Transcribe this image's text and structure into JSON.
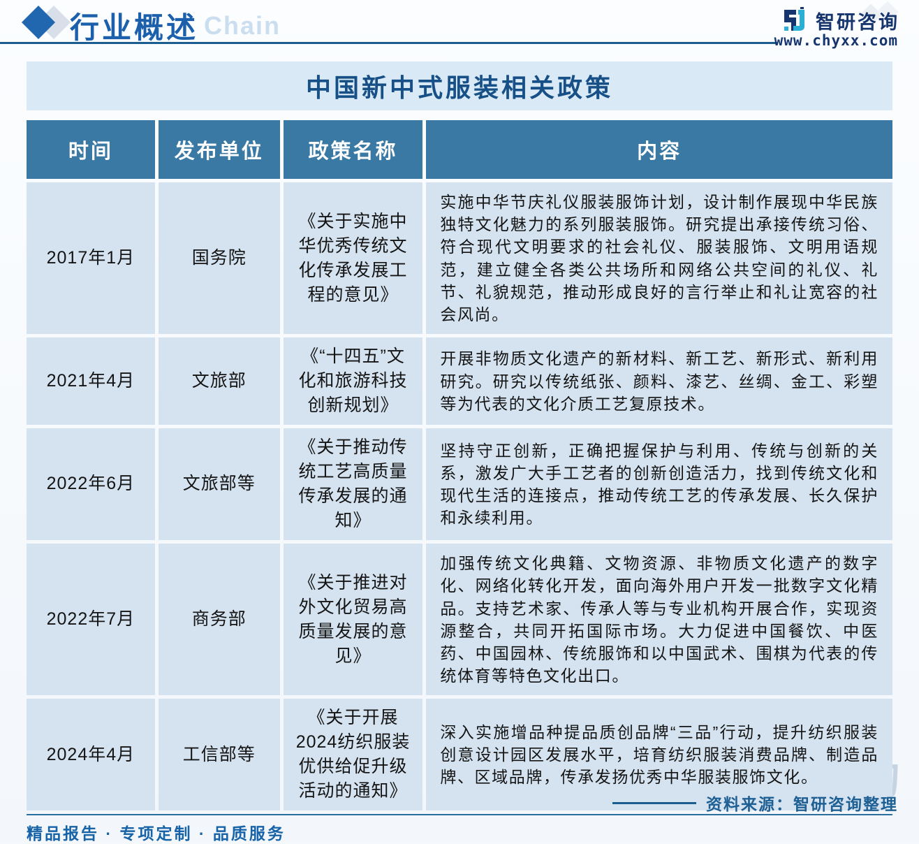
{
  "header": {
    "title": "行业概述",
    "watermark_text": "Chain",
    "brand": {
      "name": "智研咨询",
      "url": "www.chyxx.com"
    }
  },
  "table": {
    "title": "中国新中式服装相关政策",
    "columns": [
      "时间",
      "发布单位",
      "政策名称",
      "内容"
    ],
    "rows": [
      {
        "time": "2017年1月",
        "agency": "国务院",
        "policy": "《关于实施中华优秀传统文化传承发展工程的意见》",
        "content": "实施中华节庆礼仪服装服饰计划，设计制作展现中华民族独特文化魅力的系列服装服饰。研究提出承接传统习俗、符合现代文明要求的社会礼仪、服装服饰、文明用语规范，建立健全各类公共场所和网络公共空间的礼仪、礼节、礼貌规范，推动形成良好的言行举止和礼让宽容的社会风尚。"
      },
      {
        "time": "2021年4月",
        "agency": "文旅部",
        "policy": "《“十四五”文化和旅游科技创新规划》",
        "content": "开展非物质文化遗产的新材料、新工艺、新形式、新利用研究。研究以传统纸张、颜料、漆艺、丝绸、金工、彩塑等为代表的文化介质工艺复原技术。"
      },
      {
        "time": "2022年6月",
        "agency": "文旅部等",
        "policy": "《关于推动传统工艺高质量传承发展的通知》",
        "content": "坚持守正创新，正确把握保护与利用、传统与创新的关系，激发广大手工艺者的创新创造活力，找到传统文化和现代生活的连接点，推动传统工艺的传承发展、长久保护和永续利用。"
      },
      {
        "time": "2022年7月",
        "agency": "商务部",
        "policy": "《关于推进对外文化贸易高质量发展的意见》",
        "content": "加强传统文化典籍、文物资源、非物质文化遗产的数字化、网络化转化开发，面向海外用户开发一批数字文化精品。支持艺术家、传承人等与专业机构开展合作，实现资源整合，共同开拓国际市场。大力促进中国餐饮、中医药、中国园林、传统服饰和以中国武术、围棋为代表的传统体育等特色文化出口。"
      },
      {
        "time": "2024年4月",
        "agency": "工信部等",
        "policy": "《关于开展2024纺织服装优供给促升级活动的通知》",
        "content": "深入实施增品种提品质创品牌“三品”行动，提升纺织服装创意设计园区发展水平，培育纺织服装消费品牌、制造品牌、区域品牌，传承发扬优秀中华服装服饰文化。"
      }
    ]
  },
  "footer": {
    "watermark_brand": "智研咨询",
    "source": "资料来源：智研咨询整理",
    "tagline": "精品报告 · 专项定制 · 品质服务"
  },
  "colors": {
    "header_blue": "#3a79a4",
    "cell_blue": "#d5e3f0",
    "title_bar_blue": "#d9eaf6",
    "accent_navy": "#16356e",
    "rule_blue": "#1c5d8f",
    "text_blue": "#1763a8"
  }
}
